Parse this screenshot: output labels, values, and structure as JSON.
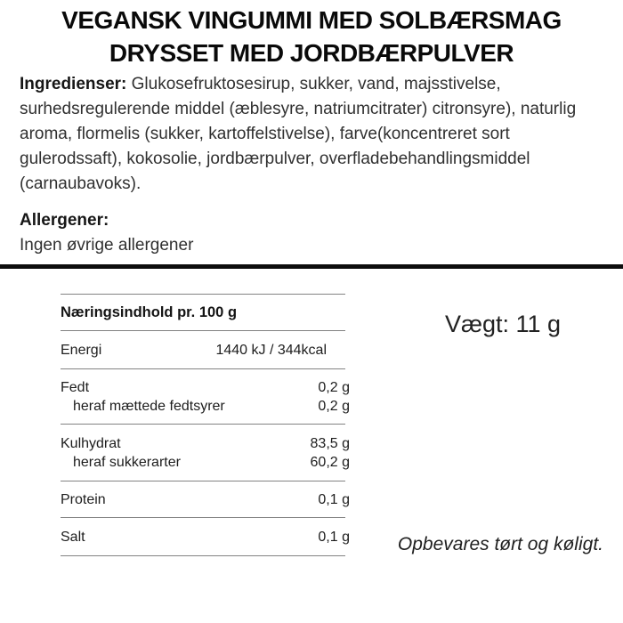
{
  "title": {
    "line1": "VEGANSK VINGUMMI MED SOLBÆRSMAG",
    "line2": "DRYSSET MED JORDBÆRPULVER"
  },
  "ingredients": {
    "label": "Ingredienser:",
    "line1_rest": " Glukosefruktosesirup, sukker, vand, majsstivelse,",
    "line2": "surhedsregulerende middel (æblesyre, natriumcitrater) citronsyre), naturlig",
    "line3": "aroma, flormelis (sukker, kartoffelstivelse), farve(koncentreret sort",
    "line4": "gulerodssaft), kokosolie, jordbærpulver, overfladebehandlingsmiddel",
    "line5": "(carnaubavoks)."
  },
  "allergens": {
    "label": "Allergener:",
    "text": "Ingen øvrige allergener"
  },
  "nutrition": {
    "header": "Næringsindhold pr. 100 g",
    "rows": [
      {
        "label": "Energi",
        "value": "1440 kJ / 344kcal"
      },
      {
        "label": "Fedt",
        "value": "0,2 g"
      },
      {
        "label": "heraf mættede fedtsyrer",
        "value": "0,2 g"
      },
      {
        "label": "Kulhydrat",
        "value": "83,5 g"
      },
      {
        "label": "heraf sukkerarter",
        "value": "60,2 g"
      },
      {
        "label": "Protein",
        "value": "0,1 g"
      },
      {
        "label": "Salt",
        "value": "0,1 g"
      }
    ]
  },
  "weight": "Vægt: 11 g",
  "storage": "Opbevares tørt og køligt.",
  "colors": {
    "text": "#303030",
    "title": "#0a0a0a",
    "table_line": "#828282",
    "divider": "#0d0d0d",
    "background": "#ffffff"
  }
}
